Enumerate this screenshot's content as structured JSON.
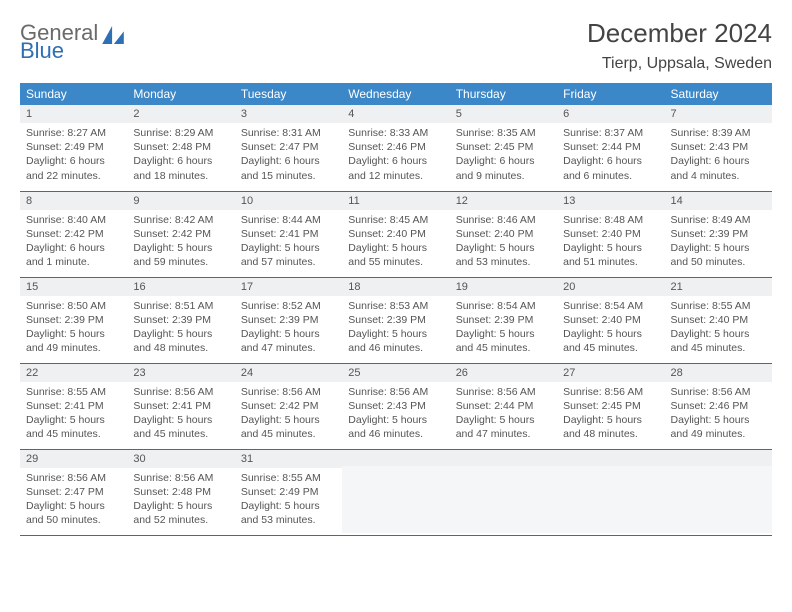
{
  "brand": {
    "word1": "General",
    "word2": "Blue",
    "word1_color": "#6a6a6a",
    "word2_color": "#2f6fb3",
    "mark_color": "#2f6fb3"
  },
  "header": {
    "month": "December 2024",
    "location": "Tierp, Uppsala, Sweden"
  },
  "theme": {
    "header_bg": "#3b87c8",
    "header_fg": "#ffffff",
    "daynum_bg": "#eef0f2",
    "rule_color": "#3b6ea0",
    "body_bg": "#ffffff",
    "text_color": "#555555"
  },
  "calendar": {
    "type": "table",
    "columns": [
      "Sunday",
      "Monday",
      "Tuesday",
      "Wednesday",
      "Thursday",
      "Friday",
      "Saturday"
    ],
    "weeks": [
      [
        {
          "n": "1",
          "sr": "8:27 AM",
          "ss": "2:49 PM",
          "d": "6 hours and 22 minutes."
        },
        {
          "n": "2",
          "sr": "8:29 AM",
          "ss": "2:48 PM",
          "d": "6 hours and 18 minutes."
        },
        {
          "n": "3",
          "sr": "8:31 AM",
          "ss": "2:47 PM",
          "d": "6 hours and 15 minutes."
        },
        {
          "n": "4",
          "sr": "8:33 AM",
          "ss": "2:46 PM",
          "d": "6 hours and 12 minutes."
        },
        {
          "n": "5",
          "sr": "8:35 AM",
          "ss": "2:45 PM",
          "d": "6 hours and 9 minutes."
        },
        {
          "n": "6",
          "sr": "8:37 AM",
          "ss": "2:44 PM",
          "d": "6 hours and 6 minutes."
        },
        {
          "n": "7",
          "sr": "8:39 AM",
          "ss": "2:43 PM",
          "d": "6 hours and 4 minutes."
        }
      ],
      [
        {
          "n": "8",
          "sr": "8:40 AM",
          "ss": "2:42 PM",
          "d": "6 hours and 1 minute."
        },
        {
          "n": "9",
          "sr": "8:42 AM",
          "ss": "2:42 PM",
          "d": "5 hours and 59 minutes."
        },
        {
          "n": "10",
          "sr": "8:44 AM",
          "ss": "2:41 PM",
          "d": "5 hours and 57 minutes."
        },
        {
          "n": "11",
          "sr": "8:45 AM",
          "ss": "2:40 PM",
          "d": "5 hours and 55 minutes."
        },
        {
          "n": "12",
          "sr": "8:46 AM",
          "ss": "2:40 PM",
          "d": "5 hours and 53 minutes."
        },
        {
          "n": "13",
          "sr": "8:48 AM",
          "ss": "2:40 PM",
          "d": "5 hours and 51 minutes."
        },
        {
          "n": "14",
          "sr": "8:49 AM",
          "ss": "2:39 PM",
          "d": "5 hours and 50 minutes."
        }
      ],
      [
        {
          "n": "15",
          "sr": "8:50 AM",
          "ss": "2:39 PM",
          "d": "5 hours and 49 minutes."
        },
        {
          "n": "16",
          "sr": "8:51 AM",
          "ss": "2:39 PM",
          "d": "5 hours and 48 minutes."
        },
        {
          "n": "17",
          "sr": "8:52 AM",
          "ss": "2:39 PM",
          "d": "5 hours and 47 minutes."
        },
        {
          "n": "18",
          "sr": "8:53 AM",
          "ss": "2:39 PM",
          "d": "5 hours and 46 minutes."
        },
        {
          "n": "19",
          "sr": "8:54 AM",
          "ss": "2:39 PM",
          "d": "5 hours and 45 minutes."
        },
        {
          "n": "20",
          "sr": "8:54 AM",
          "ss": "2:40 PM",
          "d": "5 hours and 45 minutes."
        },
        {
          "n": "21",
          "sr": "8:55 AM",
          "ss": "2:40 PM",
          "d": "5 hours and 45 minutes."
        }
      ],
      [
        {
          "n": "22",
          "sr": "8:55 AM",
          "ss": "2:41 PM",
          "d": "5 hours and 45 minutes."
        },
        {
          "n": "23",
          "sr": "8:56 AM",
          "ss": "2:41 PM",
          "d": "5 hours and 45 minutes."
        },
        {
          "n": "24",
          "sr": "8:56 AM",
          "ss": "2:42 PM",
          "d": "5 hours and 45 minutes."
        },
        {
          "n": "25",
          "sr": "8:56 AM",
          "ss": "2:43 PM",
          "d": "5 hours and 46 minutes."
        },
        {
          "n": "26",
          "sr": "8:56 AM",
          "ss": "2:44 PM",
          "d": "5 hours and 47 minutes."
        },
        {
          "n": "27",
          "sr": "8:56 AM",
          "ss": "2:45 PM",
          "d": "5 hours and 48 minutes."
        },
        {
          "n": "28",
          "sr": "8:56 AM",
          "ss": "2:46 PM",
          "d": "5 hours and 49 minutes."
        }
      ],
      [
        {
          "n": "29",
          "sr": "8:56 AM",
          "ss": "2:47 PM",
          "d": "5 hours and 50 minutes."
        },
        {
          "n": "30",
          "sr": "8:56 AM",
          "ss": "2:48 PM",
          "d": "5 hours and 52 minutes."
        },
        {
          "n": "31",
          "sr": "8:55 AM",
          "ss": "2:49 PM",
          "d": "5 hours and 53 minutes."
        },
        null,
        null,
        null,
        null
      ]
    ],
    "labels": {
      "sunrise": "Sunrise:",
      "sunset": "Sunset:",
      "daylight": "Daylight:"
    }
  }
}
